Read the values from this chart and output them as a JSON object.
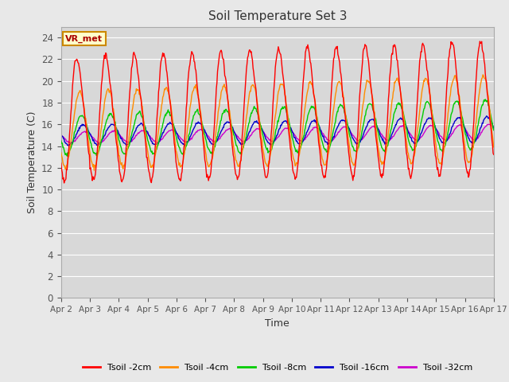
{
  "title": "Soil Temperature Set 3",
  "xlabel": "Time",
  "ylabel": "Soil Temperature (C)",
  "ylim": [
    0,
    25
  ],
  "yticks": [
    0,
    2,
    4,
    6,
    8,
    10,
    12,
    14,
    16,
    18,
    20,
    22,
    24
  ],
  "xtick_labels": [
    "Apr 2",
    "Apr 3",
    "Apr 4",
    "Apr 5",
    "Apr 6",
    "Apr 7",
    "Apr 8",
    "Apr 9",
    "Apr 10",
    "Apr 11",
    "Apr 12",
    "Apr 13",
    "Apr 14",
    "Apr 15",
    "Apr 16",
    "Apr 17"
  ],
  "legend_labels": [
    "Tsoil -2cm",
    "Tsoil -4cm",
    "Tsoil -8cm",
    "Tsoil -16cm",
    "Tsoil -32cm"
  ],
  "colors": {
    "Tsoil -2cm": "#ff0000",
    "Tsoil -4cm": "#ff8c00",
    "Tsoil -8cm": "#00cc00",
    "Tsoil -16cm": "#0000cc",
    "Tsoil -32cm": "#cc00cc"
  },
  "annotation_text": "VR_met",
  "annotation_bg": "#ffffcc",
  "annotation_edge": "#cc8800",
  "annotation_text_color": "#aa0000",
  "fig_bg": "#e8e8e8",
  "plot_bg": "#d8d8d8",
  "grid_color": "#ffffff",
  "n_days": 15,
  "points_per_day": 48,
  "trend_2cm": [
    16.5,
    17.5
  ],
  "amp_2cm": [
    5.5,
    6.0
  ],
  "trend_4cm": [
    15.5,
    16.5
  ],
  "amp_4cm": [
    3.5,
    4.0
  ],
  "trend_8cm": [
    15.0,
    16.0
  ],
  "amp_8cm": [
    1.8,
    2.3
  ],
  "trend_16cm": [
    15.0,
    15.5
  ],
  "amp_16cm": [
    0.9,
    1.2
  ],
  "trend_32cm": [
    14.8,
    15.3
  ],
  "amp_32cm": [
    0.5,
    0.7
  ]
}
